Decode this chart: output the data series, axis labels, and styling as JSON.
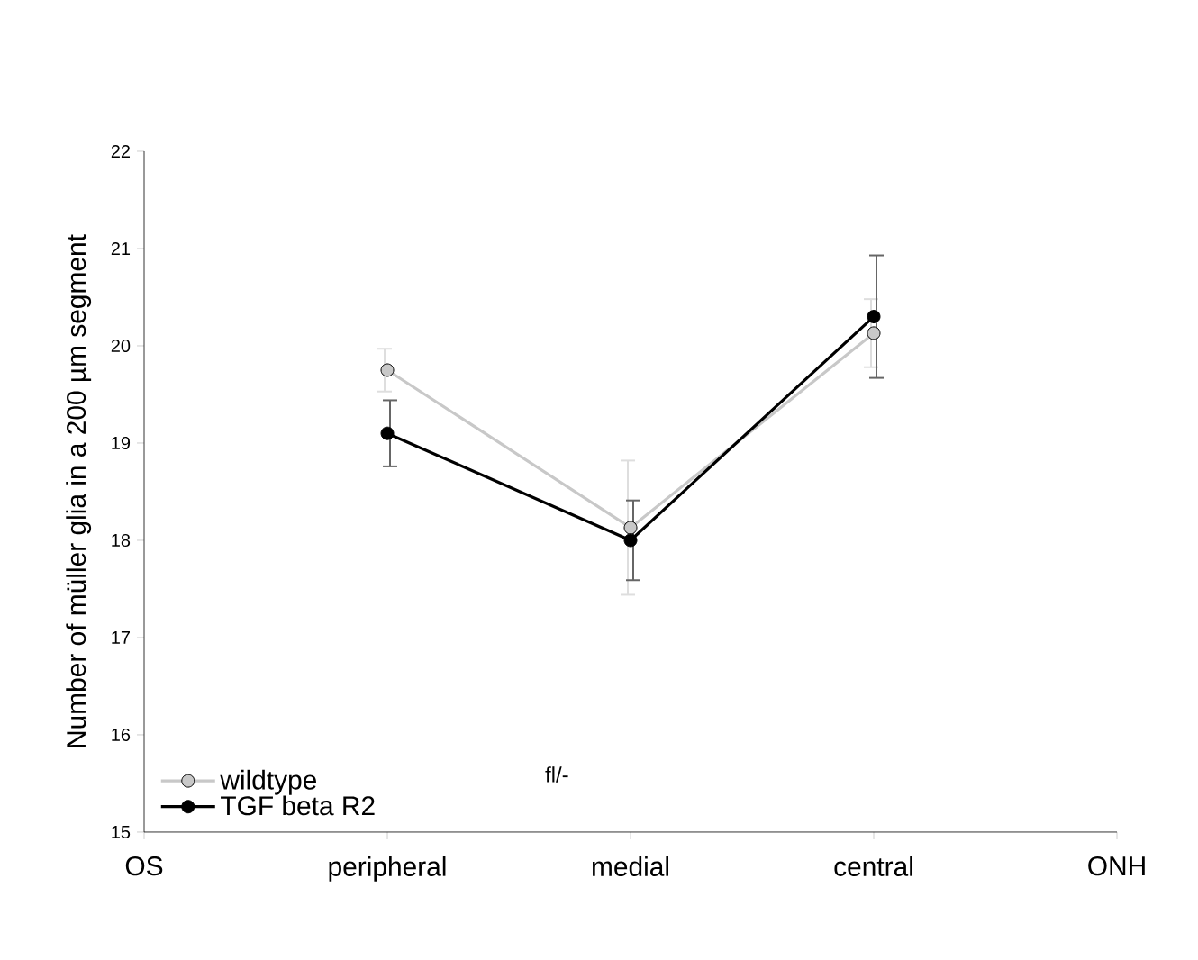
{
  "chart_data": {
    "type": "line",
    "ylabel": "Number of müller glia in a 200 µm segment",
    "categories": [
      "OS",
      "peripheral",
      "medial",
      "central",
      "ONH"
    ],
    "series": [
      {
        "name": "wildtype",
        "color": "#c8c8c8",
        "values": [
          null,
          19.75,
          18.13,
          20.13,
          null
        ],
        "errors": [
          null,
          0.22,
          0.69,
          0.35,
          null
        ]
      },
      {
        "name": "TGF beta R2",
        "color": "#000000",
        "values": [
          null,
          19.1,
          18.0,
          20.3,
          null
        ],
        "errors": [
          null,
          0.34,
          0.41,
          0.63,
          null
        ]
      }
    ],
    "ylim": [
      15,
      22
    ],
    "yticks": [
      15,
      16,
      17,
      18,
      19,
      20,
      21,
      22
    ],
    "grid": false,
    "legend": "bottom left",
    "marker": "circle",
    "line_style": "solid",
    "annotations": [
      "fl/-"
    ]
  }
}
